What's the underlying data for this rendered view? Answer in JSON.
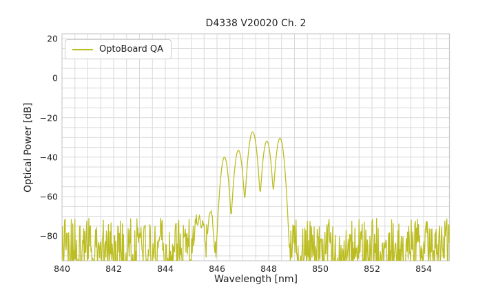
{
  "chart_data": {
    "type": "line",
    "title": "D4338 V20020 Ch. 2",
    "xlabel": "Wavelength [nm]",
    "ylabel": "Optical Power [dB]",
    "xlim": [
      840,
      855
    ],
    "ylim": [
      -92.5,
      22.5
    ],
    "grid": true,
    "x_gridline_step_nm": 0.5,
    "y_gridline_step_db": 5,
    "grid_color": "#d9d9d9",
    "frame_color": "#cccccc",
    "background_color": "#ffffff",
    "text_color": "#1f1f1f",
    "xticks": [
      {
        "value": 840,
        "label": "840"
      },
      {
        "value": 842,
        "label": "842"
      },
      {
        "value": 844,
        "label": "844"
      },
      {
        "value": 846,
        "label": "846"
      },
      {
        "value": 848,
        "label": "848"
      },
      {
        "value": 850,
        "label": "850"
      },
      {
        "value": 852,
        "label": "852"
      },
      {
        "value": 854,
        "label": "854"
      }
    ],
    "yticks": [
      {
        "value": 20,
        "label": "20"
      },
      {
        "value": 0,
        "label": "0"
      },
      {
        "value": -20,
        "label": "−20"
      },
      {
        "value": -40,
        "label": "−40"
      },
      {
        "value": -60,
        "label": "−60"
      },
      {
        "value": -80,
        "label": "−80"
      }
    ],
    "legend": {
      "position": "upper-left",
      "entries": [
        {
          "label": "OptoBoard QA",
          "color": "#bcbd22"
        }
      ]
    },
    "series": [
      {
        "name": "OptoBoard QA",
        "color": "#bcbd22",
        "line_width": 1.3,
        "sample_step_nm": 0.02,
        "description": "Optical spectrum: noise floor near −85 dB with multimode laser peak group between 845 and 848.7 nm",
        "modes_gaussian_db": [
          {
            "center_nm": 845.2,
            "peak_db": -73.0,
            "sigma_nm": 0.055
          },
          {
            "center_nm": 845.32,
            "peak_db": -70.5,
            "sigma_nm": 0.05
          },
          {
            "center_nm": 845.45,
            "peak_db": -73.5,
            "sigma_nm": 0.05
          },
          {
            "center_nm": 845.75,
            "peak_db": -67.8,
            "sigma_nm": 0.07
          },
          {
            "center_nm": 846.29,
            "peak_db": -40.0,
            "sigma_nm": 0.095
          },
          {
            "center_nm": 846.83,
            "peak_db": -36.5,
            "sigma_nm": 0.098
          },
          {
            "center_nm": 847.38,
            "peak_db": -27.2,
            "sigma_nm": 0.105
          },
          {
            "center_nm": 847.93,
            "peak_db": -31.9,
            "sigma_nm": 0.1
          },
          {
            "center_nm": 848.44,
            "peak_db": -30.4,
            "sigma_nm": 0.1
          }
        ],
        "noise_floor": {
          "min_db": -96,
          "max_db": -71,
          "skew": 1.5,
          "seed": 20020
        }
      }
    ]
  }
}
